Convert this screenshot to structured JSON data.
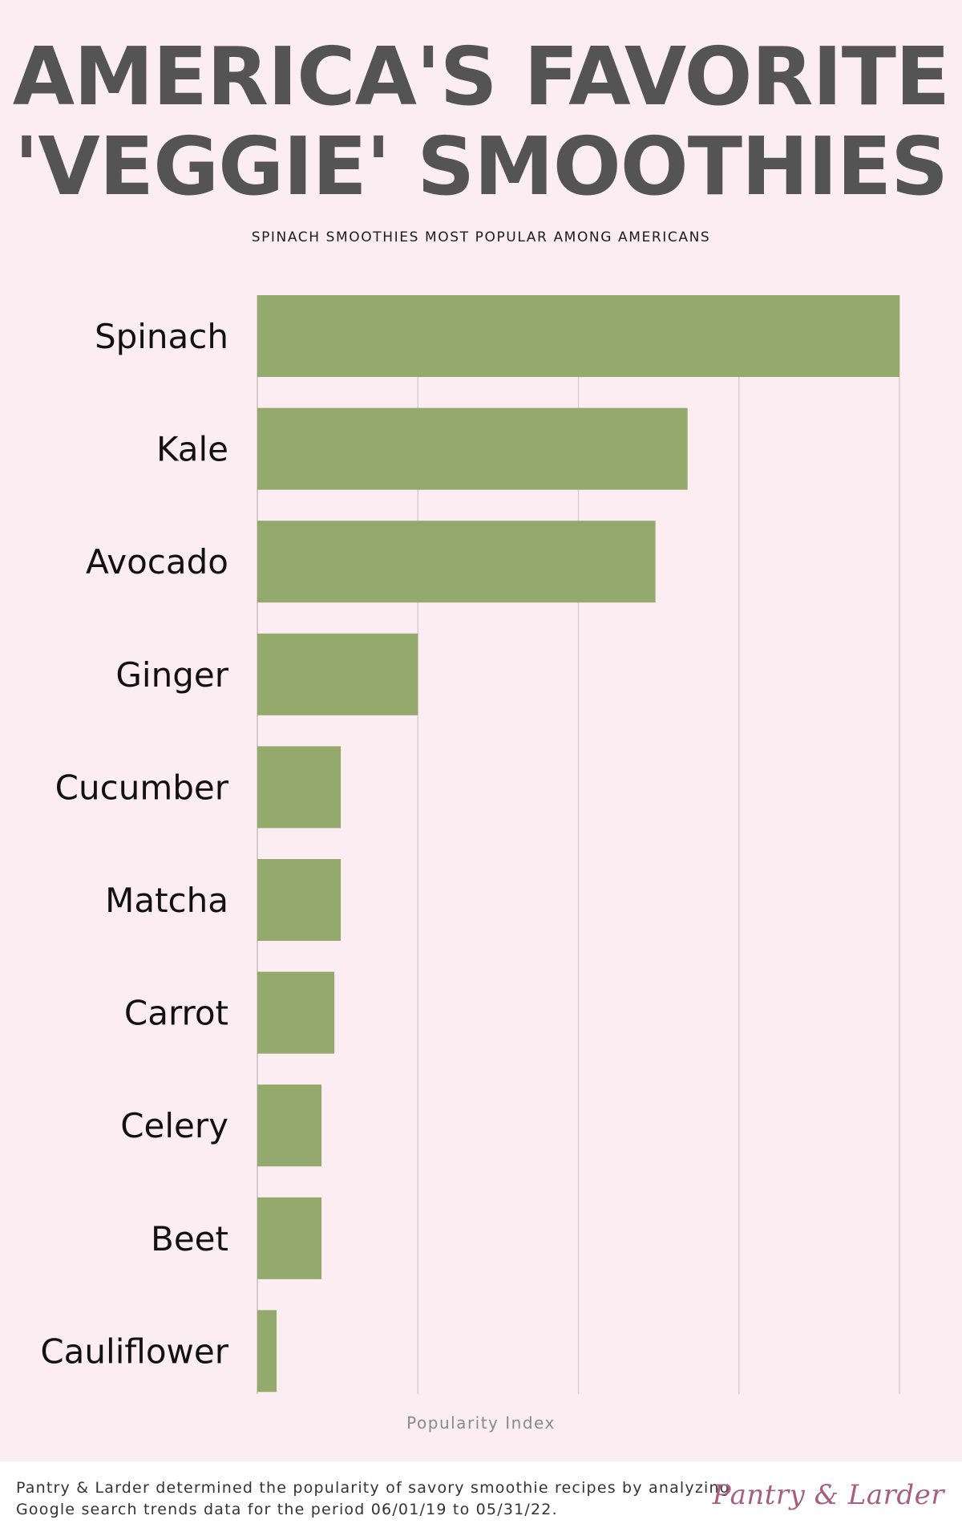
{
  "header": {
    "title_line1": "AMERICA'S FAVORITE",
    "title_line2": "'VEGGIE' SMOOTHIES",
    "subtitle": "SPINACH SMOOTHIES MOST POPULAR AMONG AMERICANS"
  },
  "chart_data": {
    "type": "bar",
    "orientation": "horizontal",
    "title": "AMERICA'S FAVORITE 'VEGGIE' SMOOTHIES",
    "subtitle": "SPINACH SMOOTHIES MOST POPULAR AMONG AMERICANS",
    "categories": [
      "Spinach",
      "Kale",
      "Avocado",
      "Ginger",
      "Cucumber",
      "Matcha",
      "Carrot",
      "Celery",
      "Beet",
      "Cauliflower"
    ],
    "values": [
      100,
      67,
      62,
      25,
      13,
      13,
      12,
      10,
      10,
      3
    ],
    "xlabel": "Popularity Index",
    "ylabel": "",
    "xlim": [
      0,
      100
    ],
    "grid": true,
    "bar_color": "#94aa6c",
    "grid_color": "#d9cfd3"
  },
  "footer": {
    "note": "Pantry & Larder determined the popularity of savory smoothie recipes by analyzing Google search trends data for the period 06/01/19 to 05/31/22.",
    "brand": "Pantry & Larder"
  }
}
